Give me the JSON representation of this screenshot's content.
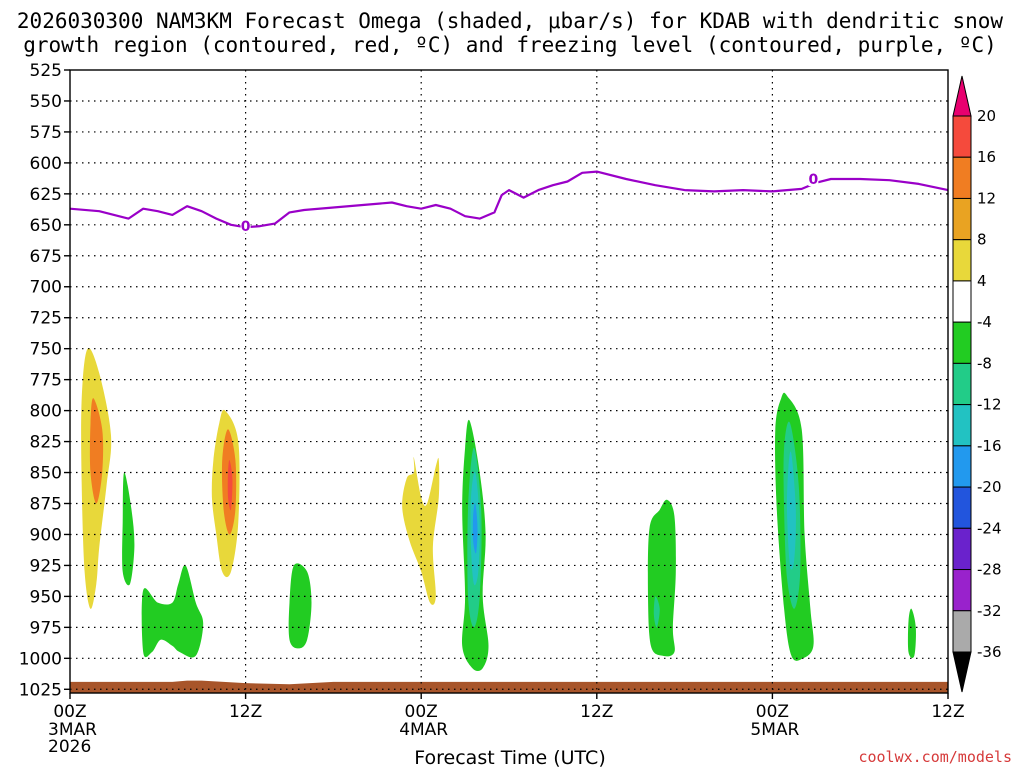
{
  "chart_data": {
    "type": "time-height contour",
    "title_line1": "2026030300 NAM3KM Forecast Omega (shaded, μbar/s) for KDAB with dendritic snow",
    "title_line2": "growth region (contoured, red, ºC) and freezing level (contoured, purple, ºC)",
    "xlabel": "Forecast Time (UTC)",
    "ylabel": "",
    "y_levels": [
      "525",
      "550",
      "575",
      "600",
      "625",
      "650",
      "675",
      "700",
      "725",
      "750",
      "775",
      "800",
      "825",
      "850",
      "875",
      "900",
      "925",
      "950",
      "975",
      "1000",
      "1025"
    ],
    "y_values": [
      525,
      550,
      575,
      600,
      625,
      650,
      675,
      700,
      725,
      750,
      775,
      800,
      825,
      850,
      875,
      900,
      925,
      950,
      975,
      1000,
      1025
    ],
    "x_ticks": [
      {
        "hour": 0,
        "label": "00Z",
        "sub1": "3MAR",
        "sub2": "2026"
      },
      {
        "hour": 12,
        "label": "12Z",
        "sub1": "",
        "sub2": ""
      },
      {
        "hour": 24,
        "label": "00Z",
        "sub1": "4MAR",
        "sub2": ""
      },
      {
        "hour": 36,
        "label": "12Z",
        "sub1": "",
        "sub2": ""
      },
      {
        "hour": 48,
        "label": "00Z",
        "sub1": "5MAR",
        "sub2": ""
      },
      {
        "hour": 60,
        "label": "12Z",
        "sub1": "",
        "sub2": ""
      }
    ],
    "xlim": [
      0,
      60
    ],
    "colorbar_labels": [
      "20",
      "16",
      "12",
      "8",
      "4",
      "-4",
      "-8",
      "-12",
      "-16",
      "-20",
      "-24",
      "-28",
      "-32",
      "-36"
    ],
    "colorbar_colors": [
      "#e8006f",
      "#f54a3c",
      "#f07d22",
      "#e9a322",
      "#e8d83a",
      "#ffffff",
      "#22cc22",
      "#22cc88",
      "#22c2c2",
      "#2299ee",
      "#2255dd",
      "#6a22cc",
      "#9922cc",
      "#aaaaaa",
      "#000000"
    ],
    "freezing_level": {
      "label": "0",
      "color": "#9a00c8",
      "points": [
        [
          0,
          637
        ],
        [
          2,
          639
        ],
        [
          4,
          645
        ],
        [
          5,
          637
        ],
        [
          6,
          639
        ],
        [
          7,
          642
        ],
        [
          8,
          635
        ],
        [
          9,
          639
        ],
        [
          10,
          645
        ],
        [
          11,
          650
        ],
        [
          12,
          652
        ],
        [
          13,
          651
        ],
        [
          14,
          649
        ],
        [
          15,
          640
        ],
        [
          16,
          638
        ],
        [
          18,
          636
        ],
        [
          20,
          634
        ],
        [
          22,
          632
        ],
        [
          23,
          635
        ],
        [
          24,
          637
        ],
        [
          25,
          634
        ],
        [
          26,
          637
        ],
        [
          27,
          643
        ],
        [
          28,
          645
        ],
        [
          29,
          640
        ],
        [
          29.5,
          626
        ],
        [
          30,
          622
        ],
        [
          30.5,
          625
        ],
        [
          31,
          628
        ],
        [
          32,
          622
        ],
        [
          33,
          618
        ],
        [
          34,
          615
        ],
        [
          35,
          608
        ],
        [
          36,
          607
        ],
        [
          38,
          613
        ],
        [
          40,
          618
        ],
        [
          42,
          622
        ],
        [
          44,
          623
        ],
        [
          46,
          622
        ],
        [
          48,
          623
        ],
        [
          50,
          621
        ],
        [
          51,
          616
        ],
        [
          52,
          613
        ],
        [
          54,
          613
        ],
        [
          56,
          614
        ],
        [
          58,
          617
        ],
        [
          60,
          622
        ]
      ]
    },
    "omega_regions": [
      {
        "name": "yellow-1",
        "value_range": "4-8",
        "color": "#e8d83a",
        "points": [
          [
            1.2,
            750
          ],
          [
            2,
            770
          ],
          [
            2.8,
            820
          ],
          [
            2.5,
            860
          ],
          [
            2,
            910
          ],
          [
            1.8,
            940
          ],
          [
            1.4,
            960
          ],
          [
            1,
            930
          ],
          [
            0.8,
            860
          ],
          [
            0.8,
            790
          ]
        ]
      },
      {
        "name": "orange-1",
        "value_range": "8-12",
        "color": "#f07d22",
        "points": [
          [
            1.6,
            790
          ],
          [
            2.2,
            815
          ],
          [
            2.2,
            850
          ],
          [
            1.8,
            875
          ],
          [
            1.4,
            850
          ],
          [
            1.4,
            810
          ]
        ]
      },
      {
        "name": "yellow-2",
        "value_range": "4-8",
        "color": "#e8d83a",
        "points": [
          [
            10.6,
            800
          ],
          [
            11.5,
            825
          ],
          [
            11.5,
            890
          ],
          [
            11,
            930
          ],
          [
            10.4,
            930
          ],
          [
            10,
            900
          ],
          [
            9.7,
            870
          ],
          [
            9.8,
            840
          ],
          [
            10.2,
            810
          ]
        ]
      },
      {
        "name": "orange-2",
        "value_range": "8-12",
        "color": "#f07d22",
        "points": [
          [
            10.8,
            815
          ],
          [
            11.3,
            840
          ],
          [
            11.3,
            880
          ],
          [
            10.9,
            900
          ],
          [
            10.5,
            880
          ],
          [
            10.4,
            840
          ]
        ]
      },
      {
        "name": "red-2",
        "value_range": "12-16",
        "color": "#f54a3c",
        "points": [
          [
            10.9,
            840
          ],
          [
            11.1,
            855
          ],
          [
            11.0,
            880
          ],
          [
            10.8,
            870
          ],
          [
            10.8,
            850
          ]
        ]
      },
      {
        "name": "yellow-3",
        "value_range": "4-8",
        "color": "#e8d83a",
        "points": [
          [
            23.5,
            838
          ],
          [
            24,
            870
          ],
          [
            24.4,
            875
          ],
          [
            25,
            845
          ],
          [
            25.2,
            840
          ],
          [
            25.2,
            870
          ],
          [
            24.8,
            910
          ],
          [
            25,
            950
          ],
          [
            24.6,
            955
          ],
          [
            24,
            930
          ],
          [
            23.2,
            905
          ],
          [
            22.7,
            878
          ],
          [
            23,
            855
          ],
          [
            23.5,
            850
          ]
        ]
      },
      {
        "name": "green-1",
        "value_range": "-4--8",
        "color": "#22cc22",
        "points": [
          [
            3.7,
            850
          ],
          [
            4.2,
            880
          ],
          [
            4.4,
            910
          ],
          [
            4.1,
            940
          ],
          [
            3.6,
            930
          ],
          [
            3.6,
            890
          ]
        ]
      },
      {
        "name": "green-2",
        "value_range": "-4--8",
        "color": "#22cc22",
        "points": [
          [
            5,
            945
          ],
          [
            6,
            955
          ],
          [
            7,
            955
          ],
          [
            7.4,
            940
          ],
          [
            7.9,
            925
          ],
          [
            8.6,
            955
          ],
          [
            9.1,
            972
          ],
          [
            8.6,
            998
          ],
          [
            7.5,
            995
          ],
          [
            7,
            990
          ],
          [
            6.2,
            985
          ],
          [
            5.6,
            995
          ],
          [
            5,
            995
          ]
        ]
      },
      {
        "name": "green-3",
        "value_range": "-4--8",
        "color": "#22cc22",
        "points": [
          [
            15.3,
            925
          ],
          [
            16.2,
            930
          ],
          [
            16.5,
            955
          ],
          [
            16.2,
            985
          ],
          [
            15.6,
            992
          ],
          [
            15,
            985
          ],
          [
            15,
            955
          ]
        ]
      },
      {
        "name": "green-4",
        "value_range": "-4--8",
        "color": "#22cc22",
        "points": [
          [
            27.3,
            808
          ],
          [
            28,
            850
          ],
          [
            28.4,
            900
          ],
          [
            28.2,
            950
          ],
          [
            28.6,
            990
          ],
          [
            28.2,
            1008
          ],
          [
            27.5,
            1008
          ],
          [
            26.8,
            990
          ],
          [
            27,
            950
          ],
          [
            26.8,
            880
          ],
          [
            27,
            830
          ]
        ]
      },
      {
        "name": "teal-4",
        "value_range": "-8--12",
        "color": "#22cc88",
        "points": [
          [
            27.6,
            830
          ],
          [
            28.1,
            880
          ],
          [
            28,
            950
          ],
          [
            27.6,
            975
          ],
          [
            27.2,
            950
          ],
          [
            27.2,
            880
          ]
        ]
      },
      {
        "name": "cyan-4",
        "value_range": "-12--16",
        "color": "#22c2c2",
        "points": [
          [
            27.7,
            850
          ],
          [
            28,
            890
          ],
          [
            27.9,
            930
          ],
          [
            27.6,
            940
          ],
          [
            27.4,
            910
          ],
          [
            27.4,
            870
          ]
        ]
      },
      {
        "name": "blue-4",
        "value_range": "-16--20",
        "color": "#2299ee",
        "points": [
          [
            27.7,
            875
          ],
          [
            27.85,
            895
          ],
          [
            27.75,
            915
          ],
          [
            27.55,
            905
          ],
          [
            27.55,
            885
          ]
        ]
      },
      {
        "name": "green-5",
        "value_range": "-4--8",
        "color": "#22cc22",
        "points": [
          [
            40.8,
            872
          ],
          [
            41.3,
            885
          ],
          [
            41.4,
            930
          ],
          [
            41.2,
            975
          ],
          [
            41.3,
            995
          ],
          [
            40.5,
            998
          ],
          [
            39.7,
            990
          ],
          [
            39.5,
            950
          ],
          [
            39.6,
            895
          ],
          [
            40.3,
            880
          ]
        ]
      },
      {
        "name": "teal-5",
        "value_range": "-8--12",
        "color": "#22cc88",
        "points": [
          [
            40,
            950
          ],
          [
            40.3,
            960
          ],
          [
            40.1,
            975
          ],
          [
            39.9,
            965
          ]
        ]
      },
      {
        "name": "green-6",
        "value_range": "-4--8",
        "color": "#22cc22",
        "points": [
          [
            49,
            788
          ],
          [
            50,
            815
          ],
          [
            50.2,
            900
          ],
          [
            50.6,
            960
          ],
          [
            50.8,
            990
          ],
          [
            50.1,
            1000
          ],
          [
            49.3,
            998
          ],
          [
            48.8,
            960
          ],
          [
            48.3,
            880
          ],
          [
            48.2,
            815
          ],
          [
            48.6,
            790
          ]
        ]
      },
      {
        "name": "teal-6",
        "value_range": "-8--12",
        "color": "#22cc88",
        "points": [
          [
            49.2,
            810
          ],
          [
            49.8,
            860
          ],
          [
            49.9,
            930
          ],
          [
            49.5,
            960
          ],
          [
            49,
            935
          ],
          [
            48.8,
            880
          ],
          [
            48.8,
            830
          ]
        ]
      },
      {
        "name": "cyan-6",
        "value_range": "-12--16",
        "color": "#22c2c2",
        "points": [
          [
            49.3,
            835
          ],
          [
            49.6,
            880
          ],
          [
            49.5,
            920
          ],
          [
            49.2,
            925
          ],
          [
            49,
            880
          ],
          [
            49.1,
            845
          ]
        ]
      },
      {
        "name": "green-7",
        "value_range": "-4--8",
        "color": "#22cc22",
        "points": [
          [
            57.5,
            960
          ],
          [
            57.8,
            975
          ],
          [
            57.7,
            998
          ],
          [
            57.3,
            995
          ],
          [
            57.3,
            970
          ]
        ]
      }
    ],
    "ground": {
      "color": "#a8552a",
      "top_levels": [
        1019,
        1019,
        1019,
        1018,
        1018,
        1020,
        1021,
        1019,
        1019,
        1019,
        1019
      ],
      "hours": [
        0,
        5,
        7,
        8,
        9,
        12,
        15,
        18,
        24,
        48,
        60
      ]
    },
    "credit": "coolwx.com/models"
  }
}
